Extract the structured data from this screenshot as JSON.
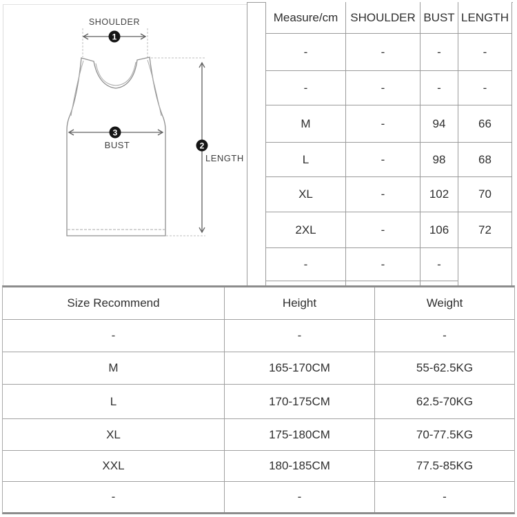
{
  "chart_data": [
    {
      "type": "table",
      "name": "garment-measurements",
      "columns": [
        "Measure/cm",
        "SHOULDER",
        "BUST",
        "LENGTH"
      ],
      "rows": [
        [
          "-",
          "-",
          "-",
          "-"
        ],
        [
          "-",
          "-",
          "-",
          "-"
        ],
        [
          "M",
          "-",
          "94",
          "66"
        ],
        [
          "L",
          "-",
          "98",
          "68"
        ],
        [
          "XL",
          "-",
          "102",
          "70"
        ],
        [
          "2XL",
          "-",
          "106",
          "72"
        ],
        [
          "-",
          "-",
          "-",
          ""
        ]
      ]
    },
    {
      "type": "table",
      "name": "size-recommend",
      "columns": [
        "Size Recommend",
        "Height",
        "Weight"
      ],
      "rows": [
        [
          "-",
          "-",
          "-"
        ],
        [
          "M",
          "165-170CM",
          "55-62.5KG"
        ],
        [
          "L",
          "170-175CM",
          "62.5-70KG"
        ],
        [
          "XL",
          "175-180CM",
          "70-77.5KG"
        ],
        [
          "XXL",
          "180-185CM",
          "77.5-85KG"
        ],
        [
          "-",
          "-",
          "-"
        ]
      ]
    }
  ],
  "diagram": {
    "garment": "tank-top",
    "labels": {
      "shoulder": "SHOULDER",
      "bust": "BUST",
      "length": "LENGTH"
    },
    "markers": {
      "shoulder": "1",
      "length": "2",
      "bust": "3"
    }
  },
  "colors": {
    "background": "#ffffff",
    "table_line": "#9a9a9a",
    "heavy_line": "#8c8c8c",
    "light_line": "#dcdcdc",
    "text": "#2e2e2e",
    "marker_bg": "#141414",
    "marker_text": "#ffffff",
    "garment_outline": "#8f8f8f",
    "arrow": "#5f5f5f",
    "dash": "#bcbcbc"
  }
}
